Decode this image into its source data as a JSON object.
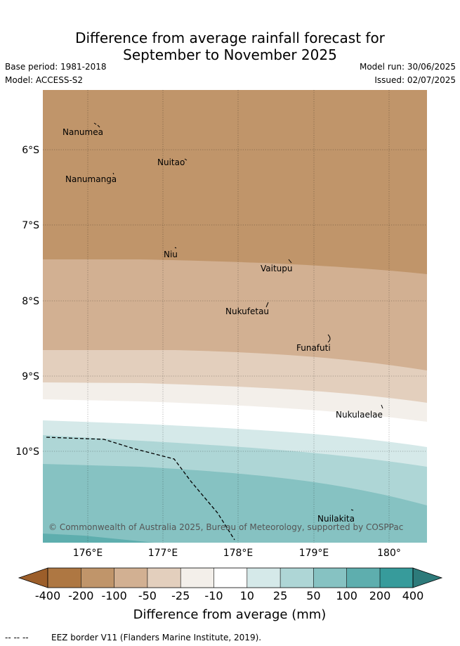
{
  "title": {
    "line1": "Difference from average rainfall forecast for",
    "line2": "September to November 2025"
  },
  "meta": {
    "base_period": "Base period: 1981-2018",
    "model": "Model: ACCESS-S2",
    "model_run": "Model run: 30/06/2025",
    "issued": "Issued: 02/07/2025"
  },
  "map": {
    "lat_labels": [
      "6°S",
      "7°S",
      "8°S",
      "9°S",
      "10°S"
    ],
    "lon_labels": [
      "176°E",
      "177°E",
      "178°E",
      "179°E",
      "180°"
    ],
    "places": [
      {
        "name": "Nanumea"
      },
      {
        "name": "Nuitao"
      },
      {
        "name": "Nanumanga"
      },
      {
        "name": "Niu"
      },
      {
        "name": "Vaitupu"
      },
      {
        "name": "Nukufetau"
      },
      {
        "name": "Funafuti"
      },
      {
        "name": "Nukulaelae"
      },
      {
        "name": "Nuilakita"
      }
    ],
    "copyright": "© Commonwealth of Australia 2025, Bureau of Meteorology, supported by COSPPac"
  },
  "colorbar": {
    "labels": [
      "-400",
      "-200",
      "-100",
      "-50",
      "-25",
      "-10",
      "10",
      "25",
      "50",
      "100",
      "200",
      "400"
    ],
    "colors": [
      "#ae7742",
      "#c0956a",
      "#d2b092",
      "#e3cfbd",
      "#f3efea",
      "#ffffff",
      "#d5e9e9",
      "#aed6d6",
      "#86c2c2",
      "#5eaeae",
      "#379b9b"
    ],
    "under_color": "#9c5e2a",
    "over_color": "#2d7a7a",
    "title": "Difference from average (mm)"
  },
  "footer": {
    "legend_symbol": "-- -- --",
    "legend_text": "EEZ border V11 (Flanders Marine Institute, 2019)."
  }
}
